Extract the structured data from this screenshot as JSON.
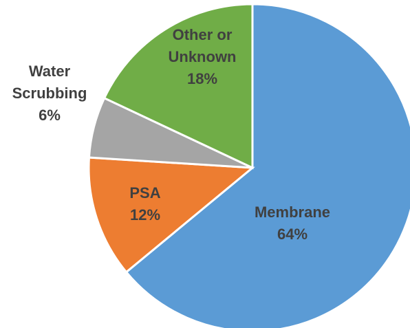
{
  "chart_data": {
    "type": "pie",
    "title": "",
    "slices": [
      {
        "name_lines": [
          "Membrane"
        ],
        "value_label": "64%",
        "value": 64,
        "color": "#5B9BD5",
        "label_color": "#404040"
      },
      {
        "name_lines": [
          "PSA"
        ],
        "value_label": "12%",
        "value": 12,
        "color": "#ED7D31",
        "label_color": "#404040"
      },
      {
        "name_lines": [
          "Water",
          "Scrubbing"
        ],
        "value_label": "6%",
        "value": 6,
        "color": "#A5A5A5",
        "label_color": "#404040"
      },
      {
        "name_lines": [
          "Other or",
          "Unknown"
        ],
        "value_label": "18%",
        "value": 18,
        "color": "#70AD47",
        "label_color": "#404040"
      }
    ]
  }
}
